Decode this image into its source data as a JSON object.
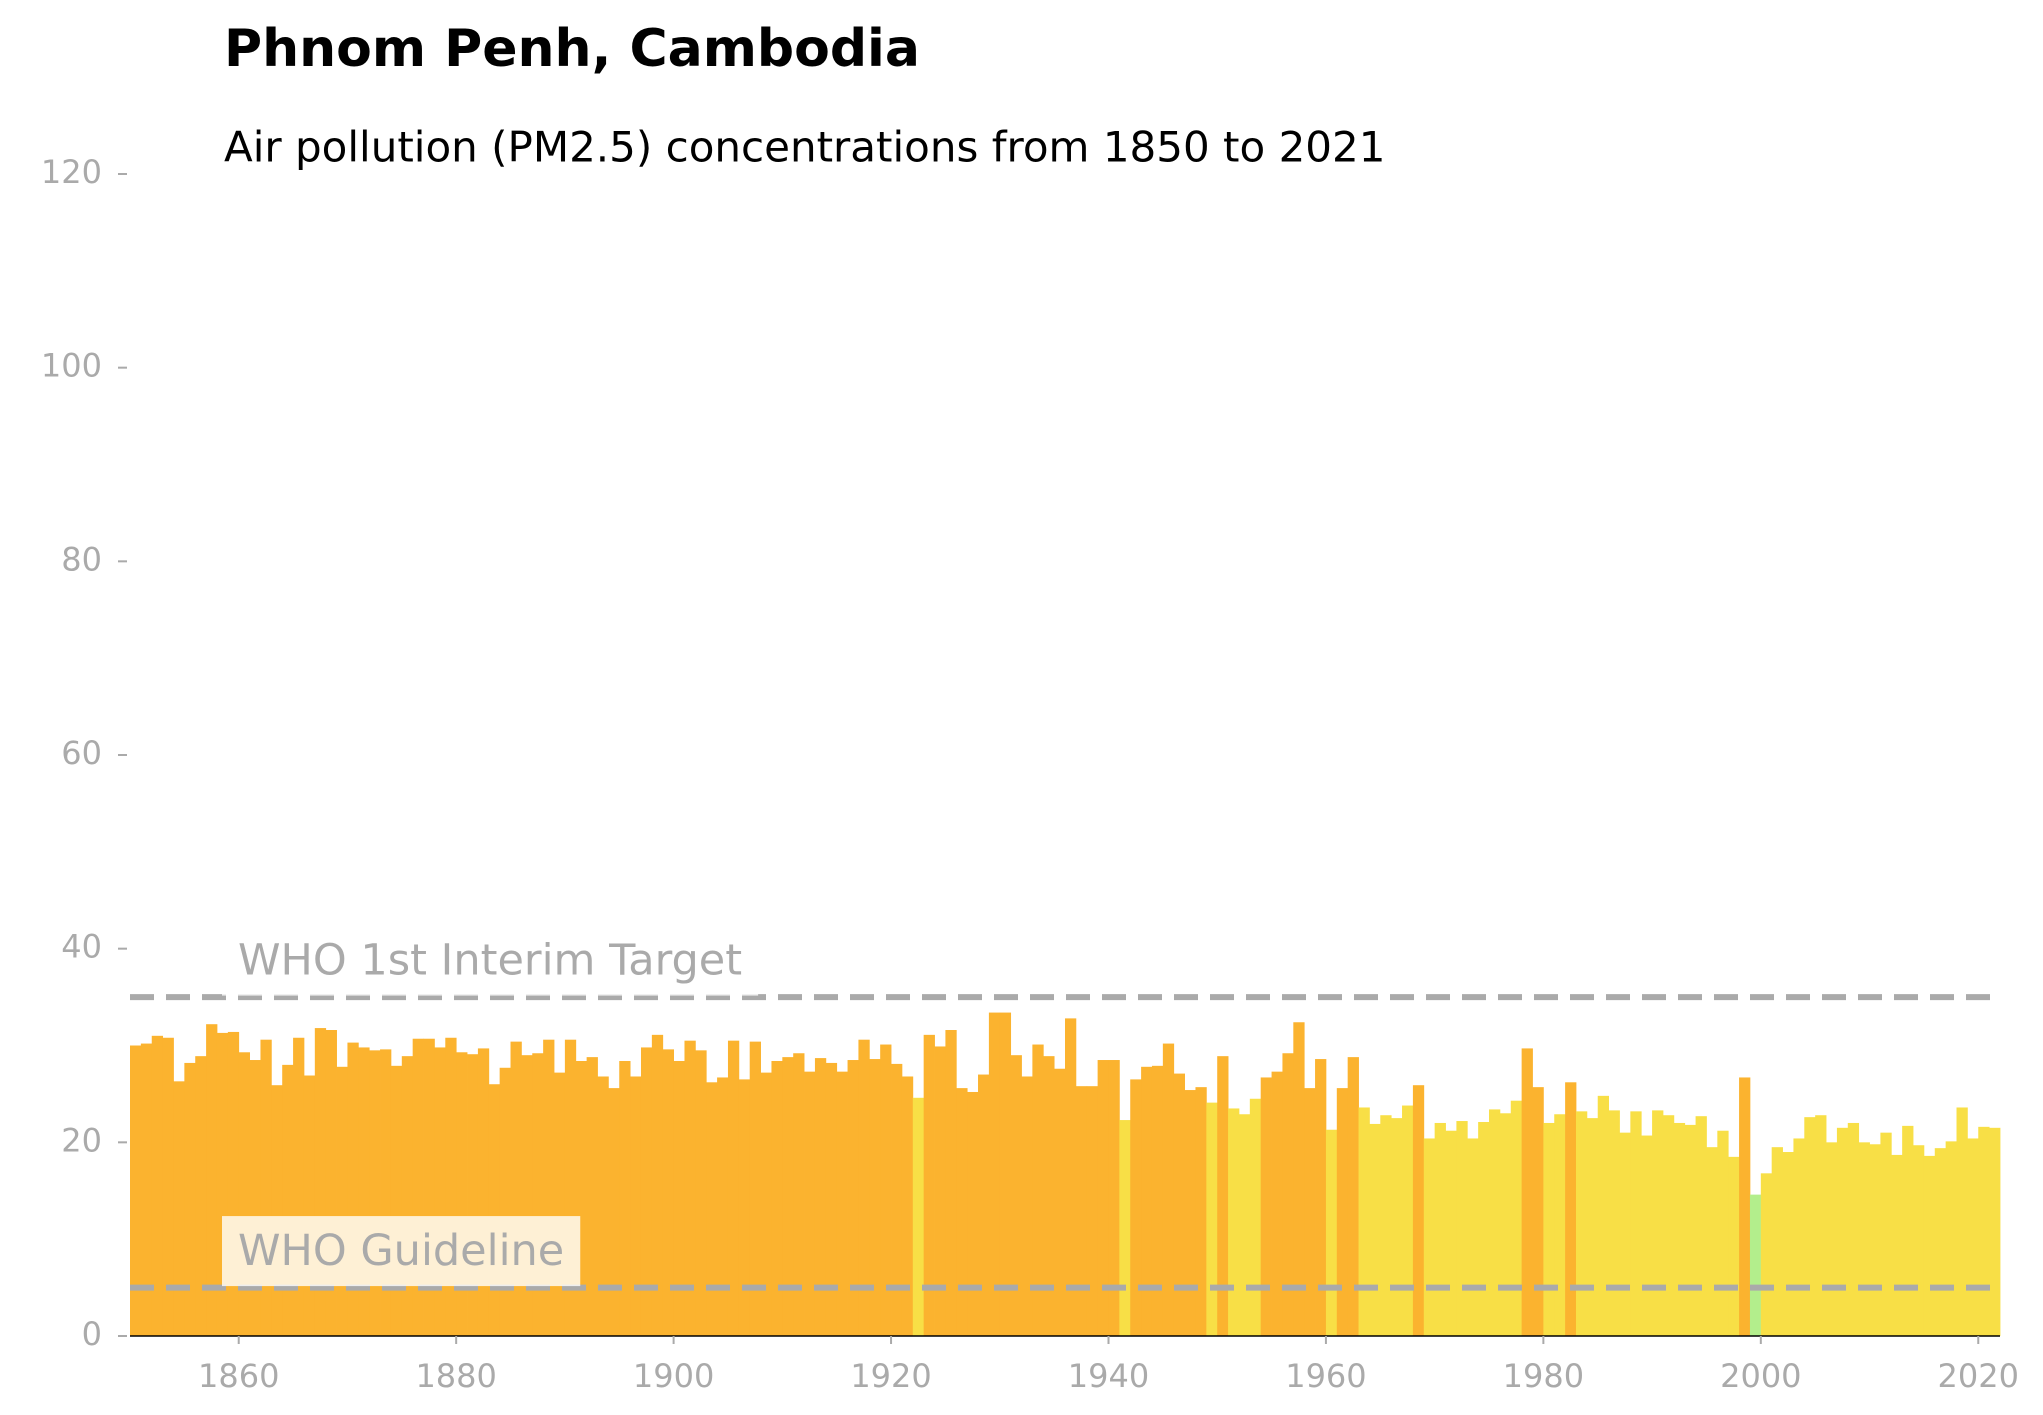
{
  "chart_data": {
    "type": "bar",
    "title": "Phnom Penh, Cambodia",
    "subtitle": "Air pollution (PM2.5) concentrations from 1850 to 2021",
    "x": [
      1850,
      1851,
      1852,
      1853,
      1854,
      1855,
      1856,
      1857,
      1858,
      1859,
      1860,
      1861,
      1862,
      1863,
      1864,
      1865,
      1866,
      1867,
      1868,
      1869,
      1870,
      1871,
      1872,
      1873,
      1874,
      1875,
      1876,
      1877,
      1878,
      1879,
      1880,
      1881,
      1882,
      1883,
      1884,
      1885,
      1886,
      1887,
      1888,
      1889,
      1890,
      1891,
      1892,
      1893,
      1894,
      1895,
      1896,
      1897,
      1898,
      1899,
      1900,
      1901,
      1902,
      1903,
      1904,
      1905,
      1906,
      1907,
      1908,
      1909,
      1910,
      1911,
      1912,
      1913,
      1914,
      1915,
      1916,
      1917,
      1918,
      1919,
      1920,
      1921,
      1922,
      1923,
      1924,
      1925,
      1926,
      1927,
      1928,
      1929,
      1930,
      1931,
      1932,
      1933,
      1934,
      1935,
      1936,
      1937,
      1938,
      1939,
      1940,
      1941,
      1942,
      1943,
      1944,
      1945,
      1946,
      1947,
      1948,
      1949,
      1950,
      1951,
      1952,
      1953,
      1954,
      1955,
      1956,
      1957,
      1958,
      1959,
      1960,
      1961,
      1962,
      1963,
      1964,
      1965,
      1966,
      1967,
      1968,
      1969,
      1970,
      1971,
      1972,
      1973,
      1974,
      1975,
      1976,
      1977,
      1978,
      1979,
      1980,
      1981,
      1982,
      1983,
      1984,
      1985,
      1986,
      1987,
      1988,
      1989,
      1990,
      1991,
      1992,
      1993,
      1994,
      1995,
      1996,
      1997,
      1998,
      1999,
      2000,
      2001,
      2002,
      2003,
      2004,
      2005,
      2006,
      2007,
      2008,
      2009,
      2010,
      2011,
      2012,
      2013,
      2014,
      2015,
      2016,
      2017,
      2018,
      2019,
      2020,
      2021
    ],
    "values": [
      30.0,
      30.2,
      31.0,
      30.8,
      26.3,
      28.2,
      28.9,
      32.2,
      31.3,
      31.4,
      29.3,
      28.5,
      30.6,
      25.9,
      28.0,
      30.8,
      26.9,
      31.8,
      31.6,
      27.8,
      30.3,
      29.8,
      29.5,
      29.6,
      27.9,
      28.9,
      30.7,
      30.7,
      29.8,
      30.8,
      29.3,
      29.1,
      29.7,
      26.0,
      27.7,
      30.4,
      29.0,
      29.2,
      30.6,
      27.2,
      30.6,
      28.4,
      28.8,
      26.8,
      25.6,
      28.4,
      26.8,
      29.8,
      31.1,
      29.6,
      28.4,
      30.5,
      29.5,
      26.2,
      26.7,
      30.5,
      26.5,
      30.4,
      27.2,
      28.4,
      28.8,
      29.2,
      27.3,
      28.7,
      28.2,
      27.3,
      28.5,
      30.6,
      28.6,
      30.1,
      28.1,
      26.8,
      24.6,
      31.1,
      29.9,
      31.6,
      25.6,
      25.2,
      27.0,
      33.4,
      33.4,
      29.0,
      26.8,
      30.1,
      28.9,
      27.6,
      32.8,
      25.8,
      25.8,
      28.5,
      28.5,
      22.3,
      26.5,
      27.8,
      27.9,
      30.2,
      27.1,
      25.4,
      25.7,
      24.1,
      28.9,
      23.5,
      22.9,
      24.5,
      26.7,
      27.3,
      29.2,
      32.4,
      25.6,
      28.6,
      21.3,
      25.6,
      28.8,
      23.6,
      21.9,
      22.8,
      22.5,
      23.8,
      25.9,
      20.4,
      22.0,
      21.2,
      22.2,
      20.4,
      22.1,
      23.4,
      23.0,
      24.3,
      29.7,
      25.7,
      22.0,
      22.9,
      26.2,
      23.2,
      22.5,
      24.8,
      23.3,
      21.0,
      23.2,
      20.7,
      23.3,
      22.8,
      22.0,
      21.8,
      22.7,
      19.5,
      21.2,
      18.5,
      26.7,
      14.6,
      16.8,
      19.5,
      19.0,
      20.4,
      22.6,
      22.8,
      20.0,
      21.5,
      22.0,
      20.0,
      19.8,
      21.0,
      18.7,
      21.7,
      19.7,
      18.6,
      19.4,
      20.1,
      23.6,
      20.4,
      21.6,
      21.5
    ],
    "colors": [
      "#fbb32f",
      "#fbb32f",
      "#fbb32f",
      "#fbb32f",
      "#fbb32f",
      "#fbb32f",
      "#fbb32f",
      "#fbb32f",
      "#fbb32f",
      "#fbb32f",
      "#fbb32f",
      "#fbb32f",
      "#fbb32f",
      "#fbb32f",
      "#fbb32f",
      "#fbb32f",
      "#fbb32f",
      "#fbb32f",
      "#fbb32f",
      "#fbb32f",
      "#fbb32f",
      "#fbb32f",
      "#fbb32f",
      "#fbb32f",
      "#fbb32f",
      "#fbb32f",
      "#fbb32f",
      "#fbb32f",
      "#fbb32f",
      "#fbb32f",
      "#fbb32f",
      "#fbb32f",
      "#fbb32f",
      "#fbb32f",
      "#fbb32f",
      "#fbb32f",
      "#fbb32f",
      "#fbb32f",
      "#fbb32f",
      "#fbb32f",
      "#fbb32f",
      "#fbb32f",
      "#fbb32f",
      "#fbb32f",
      "#fbb32f",
      "#fbb32f",
      "#fbb32f",
      "#fbb32f",
      "#fbb32f",
      "#fbb32f",
      "#fbb32f",
      "#fbb32f",
      "#fbb32f",
      "#fbb32f",
      "#fbb32f",
      "#fbb32f",
      "#fbb32f",
      "#fbb32f",
      "#fbb32f",
      "#fbb32f",
      "#fbb32f",
      "#fbb32f",
      "#fbb32f",
      "#fbb32f",
      "#fbb32f",
      "#fbb32f",
      "#fbb32f",
      "#fbb32f",
      "#fbb32f",
      "#fbb32f",
      "#fbb32f",
      "#fbb32f",
      "#f8df46",
      "#fbb32f",
      "#fbb32f",
      "#fbb32f",
      "#fbb32f",
      "#fbb32f",
      "#fbb32f",
      "#fbb32f",
      "#fbb32f",
      "#fbb32f",
      "#fbb32f",
      "#fbb32f",
      "#fbb32f",
      "#fbb32f",
      "#fbb32f",
      "#fbb32f",
      "#fbb32f",
      "#fbb32f",
      "#fbb32f",
      "#f8df46",
      "#fbb32f",
      "#fbb32f",
      "#fbb32f",
      "#fbb32f",
      "#fbb32f",
      "#fbb32f",
      "#fbb32f",
      "#f8df46",
      "#fbb32f",
      "#f8df46",
      "#f8df46",
      "#f8df46",
      "#fbb32f",
      "#fbb32f",
      "#fbb32f",
      "#fbb32f",
      "#fbb32f",
      "#fbb32f",
      "#f8df46",
      "#fbb32f",
      "#fbb32f",
      "#f8df46",
      "#f8df46",
      "#f8df46",
      "#f8df46",
      "#f8df46",
      "#fbb32f",
      "#f8df46",
      "#f8df46",
      "#f8df46",
      "#f8df46",
      "#f8df46",
      "#f8df46",
      "#f8df46",
      "#f8df46",
      "#f8df46",
      "#fbb32f",
      "#fbb32f",
      "#f8df46",
      "#f8df46",
      "#fbb32f",
      "#f8df46",
      "#f8df46",
      "#f8df46",
      "#f8df46",
      "#f8df46",
      "#f8df46",
      "#f8df46",
      "#f8df46",
      "#f8df46",
      "#f8df46",
      "#f8df46",
      "#f8df46",
      "#f8df46",
      "#f8df46",
      "#f8df46",
      "#fbb32f",
      "#b3ee8c",
      "#f8df46",
      "#f8df46",
      "#f8df46",
      "#f8df46",
      "#f8df46",
      "#f8df46",
      "#f8df46",
      "#f8df46",
      "#f8df46",
      "#f8df46",
      "#f8df46",
      "#f8df46",
      "#f8df46",
      "#f8df46",
      "#f8df46",
      "#f8df46",
      "#f8df46",
      "#f8df46",
      "#f8df46",
      "#f8df46",
      "#f8df46",
      "#f8df46"
    ],
    "xlim": [
      1850,
      2022
    ],
    "xticks": [
      1860,
      1880,
      1900,
      1920,
      1940,
      1960,
      1980,
      2000,
      2020
    ],
    "ylim": [
      0,
      120
    ],
    "yticks": [
      0,
      20,
      40,
      60,
      80,
      100,
      120
    ],
    "reference_lines": [
      {
        "value": 35,
        "label": "WHO 1st Interim Target"
      },
      {
        "value": 5,
        "label": "WHO Guideline"
      }
    ]
  }
}
